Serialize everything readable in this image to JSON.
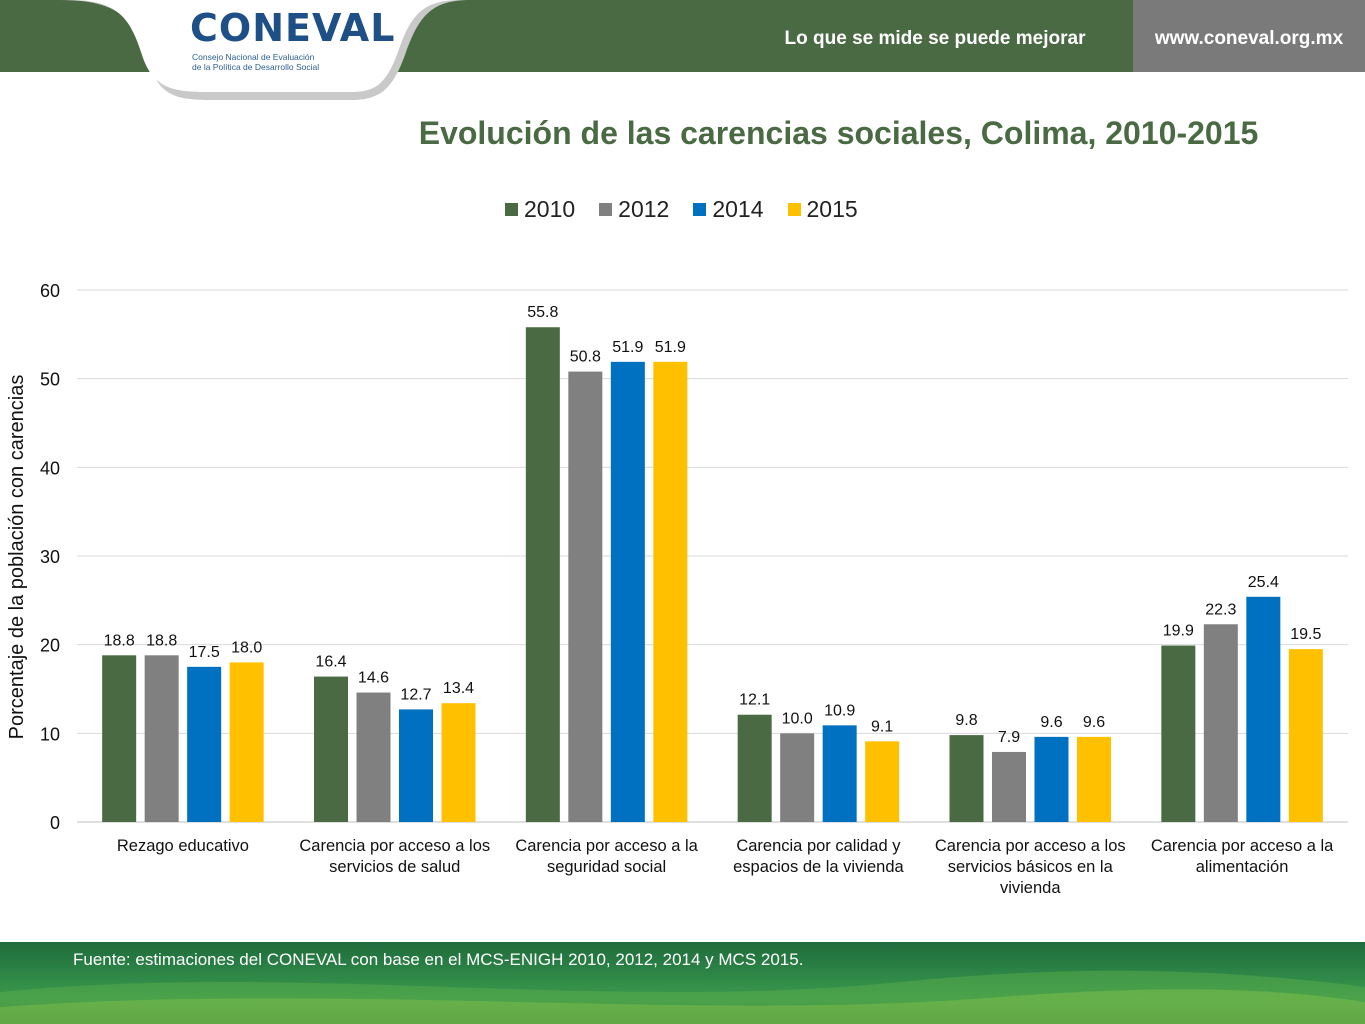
{
  "header": {
    "logo_text": "CONEVAL",
    "logo_subtitle_line1": "Consejo Nacional de Evaluación",
    "logo_subtitle_line2": "de la Política de Desarrollo Social",
    "tagline": "Lo que se mide se puede mejorar",
    "url": "www.coneval.org.mx"
  },
  "colors": {
    "header_green": "#4a6a43",
    "header_gray": "#7a7a7a",
    "series_2010": "#4a6a43",
    "series_2012": "#808080",
    "series_2014": "#0070c0",
    "series_2015": "#ffc000"
  },
  "chart_data": {
    "type": "bar",
    "title": "Evolución de las carencias sociales, Colima, 2010-2015",
    "xlabel": "",
    "ylabel": "Porcentaje de la población con carencias",
    "ylim": [
      0,
      60
    ],
    "yticks": [
      0,
      10,
      20,
      30,
      40,
      50,
      60
    ],
    "grid": true,
    "legend_position": "top",
    "categories": [
      [
        "Rezago educativo"
      ],
      [
        "Carencia por acceso a los",
        "servicios de salud"
      ],
      [
        "Carencia por acceso a la",
        "seguridad social"
      ],
      [
        "Carencia por calidad y",
        "espacios de la vivienda"
      ],
      [
        "Carencia por acceso a los",
        "servicios básicos en la",
        "vivienda"
      ],
      [
        "Carencia por acceso a la",
        "alimentación"
      ]
    ],
    "series": [
      {
        "name": "2010",
        "color": "#4a6a43",
        "values": [
          18.8,
          16.4,
          55.8,
          12.1,
          9.8,
          19.9
        ]
      },
      {
        "name": "2012",
        "color": "#808080",
        "values": [
          18.8,
          14.6,
          50.8,
          10.0,
          7.9,
          22.3
        ]
      },
      {
        "name": "2014",
        "color": "#0070c0",
        "values": [
          17.5,
          12.7,
          51.9,
          10.9,
          9.6,
          25.4
        ]
      },
      {
        "name": "2015",
        "color": "#ffc000",
        "values": [
          18.0,
          13.4,
          51.9,
          9.1,
          9.6,
          19.5
        ]
      }
    ]
  },
  "footer": {
    "source": "Fuente: estimaciones del CONEVAL con base en el MCS-ENIGH 2010, 2012, 2014 y MCS 2015."
  }
}
